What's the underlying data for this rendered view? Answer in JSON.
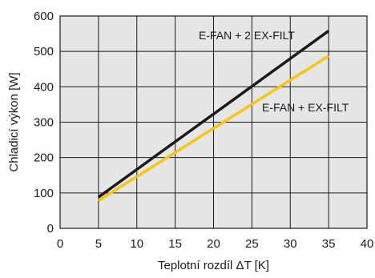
{
  "chart_data": {
    "type": "line",
    "title": "",
    "xlabel": "Teplotní rozdíl ΔT [K]",
    "ylabel": "Chladicí výkon [W]",
    "xlim": [
      0,
      40
    ],
    "ylim": [
      0,
      600
    ],
    "xticks": [
      "0",
      "5",
      "10",
      "15",
      "20",
      "25",
      "30",
      "35",
      "40"
    ],
    "yticks": [
      "0",
      "100",
      "200",
      "300",
      "400",
      "500",
      "600"
    ],
    "grid": true,
    "legend": "none",
    "series": [
      {
        "name": "E-FAN + 2 EX-FILT",
        "x": [
          5,
          35
        ],
        "y": [
          88,
          558
        ],
        "color": "#1a1a1a"
      },
      {
        "name": "E-FAN + EX-FILT",
        "x": [
          5,
          35
        ],
        "y": [
          78,
          487
        ],
        "color": "#f5c518"
      }
    ]
  },
  "colors": {
    "plot_background": "#e6e6e6",
    "grid": "#1a1a1a"
  }
}
